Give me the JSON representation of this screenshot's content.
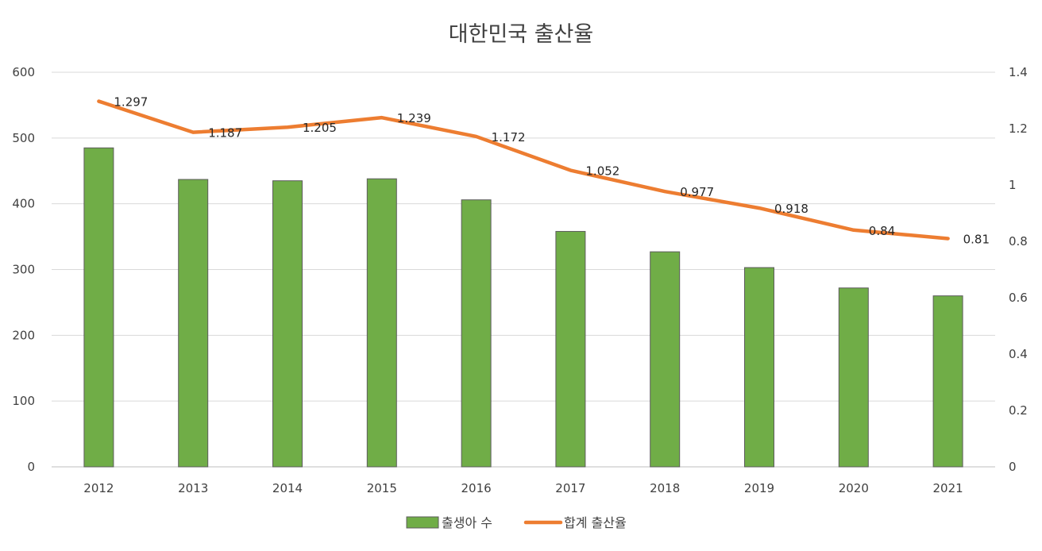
{
  "chart_data": {
    "type": "bar",
    "title": "대한민국 출산율",
    "categories": [
      "2012",
      "2013",
      "2014",
      "2015",
      "2016",
      "2017",
      "2018",
      "2019",
      "2020",
      "2021"
    ],
    "series": [
      {
        "name": "출생아 수",
        "type": "bar",
        "axis": "left",
        "color": "#70ad47",
        "values": [
          485,
          437,
          435,
          438,
          406,
          358,
          327,
          303,
          272,
          260
        ]
      },
      {
        "name": "합계 출산율",
        "type": "line",
        "axis": "right",
        "color": "#ed7d31",
        "values": [
          1.297,
          1.187,
          1.205,
          1.239,
          1.172,
          1.052,
          0.977,
          0.918,
          0.84,
          0.81
        ],
        "data_labels": [
          "1.297",
          "1.187",
          "1.205",
          "1.239",
          "1.172",
          "1.052",
          "0.977",
          "0.918",
          "0.84",
          "0.81"
        ]
      }
    ],
    "y_left": {
      "min": 0,
      "max": 600,
      "ticks": [
        0,
        100,
        200,
        300,
        400,
        500,
        600
      ],
      "tick_labels": [
        "0",
        "100",
        "200",
        "300",
        "400",
        "500",
        "600"
      ]
    },
    "y_right": {
      "min": 0,
      "max": 1.4,
      "ticks": [
        0,
        0.2,
        0.4,
        0.6,
        0.8,
        1,
        1.2,
        1.4
      ],
      "tick_labels": [
        "0",
        "0.2",
        "0.4",
        "0.6",
        "0.8",
        "1",
        "1.2",
        "1.4"
      ]
    },
    "grid": true,
    "legend_position": "bottom"
  }
}
